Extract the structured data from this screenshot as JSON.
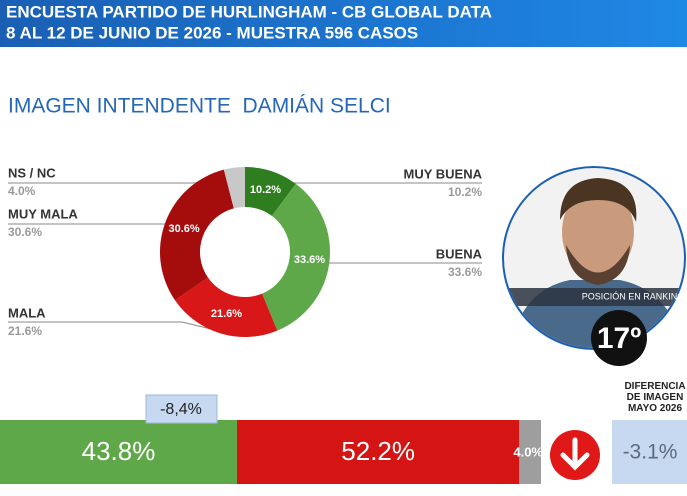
{
  "header": {
    "line1": "ENCUESTA PARTIDO DE HURLINGHAM - CB GLOBAL DATA",
    "line2": "8 AL 12 DE JUNIO DE 2026 - MUESTRA 596 CASOS"
  },
  "chart_data": {
    "type": "pie",
    "title": "IMAGEN INTENDENTE  DAMIÁN SELCI",
    "categories": [
      "MUY BUENA",
      "BUENA",
      "MALA",
      "MUY MALA",
      "NS / NC"
    ],
    "values": [
      10.2,
      33.6,
      21.6,
      30.6,
      4.0
    ],
    "value_labels": [
      "10.2%",
      "33.6%",
      "21.6%",
      "30.6%",
      "4.0%"
    ],
    "colors": [
      "#2e7d1f",
      "#5fa84a",
      "#d81818",
      "#a50d0d",
      "#c8c8c8"
    ]
  },
  "summary": {
    "type": "stacked-bar",
    "values": [
      43.8,
      52.2,
      4.0
    ],
    "value_labels": [
      "43.8%",
      "52.2%",
      "4.0%"
    ],
    "colors": [
      "#5fa84a",
      "#d51414",
      "#9e9e9e"
    ],
    "gap": {
      "value": -8.4,
      "label": "-8,4%"
    },
    "change": {
      "label": "DIFERENCIA DE IMAGEN MAYO 2026",
      "value": -3.1,
      "value_label": "-3.1%"
    }
  },
  "ranking": {
    "label": "POSICIÓN EN RANKING",
    "value": 17,
    "value_label": "17º"
  }
}
